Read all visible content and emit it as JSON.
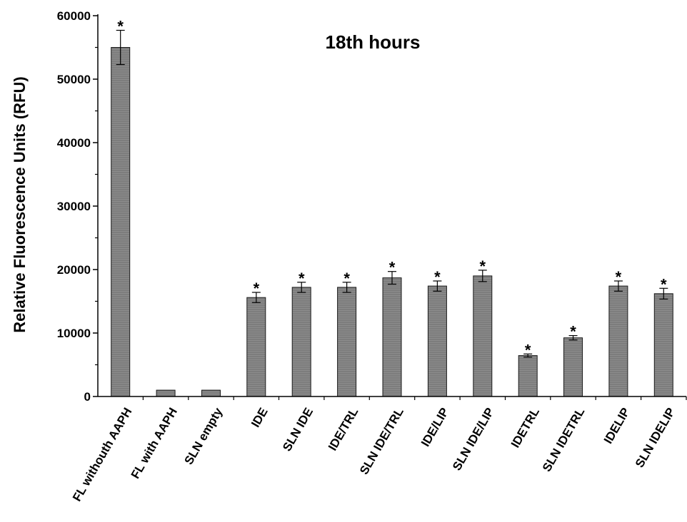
{
  "chart_data": {
    "type": "bar",
    "title": "18th hours",
    "xlabel": "",
    "ylabel": "Relative Fluorescence Units (RFU)",
    "ylim": [
      0,
      60000
    ],
    "yticks": [
      0,
      10000,
      20000,
      30000,
      40000,
      50000,
      60000
    ],
    "ytick_labels": [
      "0",
      "10000",
      "20000",
      "30000",
      "40000",
      "50000",
      "60000"
    ],
    "categories": [
      "FL withouth AAPH",
      "FL with AAPH",
      "SLN empty",
      "IDE",
      "SLN IDE",
      "IDE/TRL",
      "SLN IDE/TRL",
      "IDE/LIP",
      "SLN IDE/LIP",
      "IDETRL",
      "SLN IDETRL",
      "IDELIP",
      "SLN IDELIP"
    ],
    "values": [
      55000,
      1000,
      1000,
      15600,
      17200,
      17200,
      18700,
      17400,
      19000,
      6450,
      9250,
      17400,
      16200
    ],
    "errors": [
      2700,
      0,
      0,
      800,
      800,
      800,
      1000,
      800,
      900,
      250,
      350,
      800,
      850
    ],
    "significance": [
      "*",
      "",
      "",
      "*",
      "*",
      "*",
      "*",
      "*",
      "*",
      "*",
      "*",
      "*",
      "*"
    ],
    "grid": false,
    "legend": "none",
    "colors": {
      "bar_fill": "#7a7a7a",
      "bar_stroke": "#1a1a1a",
      "axis": "#000000",
      "text": "#000000"
    }
  }
}
